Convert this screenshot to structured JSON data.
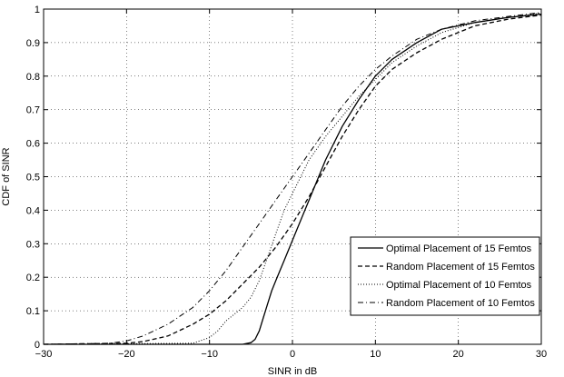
{
  "chart_data": {
    "type": "line",
    "title": "",
    "xlabel": "SINR in dB",
    "ylabel": "CDF of SINR",
    "xlim": [
      -30,
      30
    ],
    "ylim": [
      0,
      1
    ],
    "xticks": [
      -30,
      -20,
      -10,
      0,
      10,
      20,
      30
    ],
    "yticks": [
      0,
      0.1,
      0.2,
      0.3,
      0.4,
      0.5,
      0.6,
      0.7,
      0.8,
      0.9,
      1
    ],
    "xtick_labels": [
      "−30",
      "−20",
      "−10",
      "0",
      "10",
      "20",
      "30"
    ],
    "ytick_labels": [
      "0",
      "0.1",
      "0.2",
      "0.3",
      "0.4",
      "0.5",
      "0.6",
      "0.7",
      "0.8",
      "0.9",
      "1"
    ],
    "grid": true,
    "legend_position": "lower-right",
    "series": [
      {
        "name": "Optimal Placement of 15 Femtos",
        "style": "solid",
        "color": "#000000",
        "x": [
          -30,
          -6,
          -5,
          -4.5,
          -4,
          -3.5,
          -3,
          -2.5,
          -2,
          -1.5,
          -1,
          0,
          1,
          2,
          4,
          6,
          8,
          10,
          12,
          15,
          18,
          22,
          26,
          30
        ],
        "y": [
          0,
          0,
          0.005,
          0.015,
          0.04,
          0.08,
          0.12,
          0.16,
          0.19,
          0.22,
          0.25,
          0.31,
          0.37,
          0.43,
          0.55,
          0.65,
          0.73,
          0.8,
          0.85,
          0.9,
          0.94,
          0.96,
          0.975,
          0.985
        ]
      },
      {
        "name": "Random Placement of 15 Femtos",
        "style": "dashed",
        "color": "#000000",
        "x": [
          -30,
          -20,
          -18,
          -15,
          -12,
          -10,
          -8,
          -6,
          -4,
          -2,
          0,
          2,
          4,
          6,
          8,
          10,
          12,
          15,
          18,
          22,
          26,
          30
        ],
        "y": [
          0,
          0.003,
          0.008,
          0.025,
          0.06,
          0.09,
          0.13,
          0.18,
          0.23,
          0.29,
          0.36,
          0.44,
          0.53,
          0.62,
          0.7,
          0.77,
          0.82,
          0.87,
          0.91,
          0.95,
          0.97,
          0.982
        ]
      },
      {
        "name": "Optimal Placement of 10 Femtos",
        "style": "dotted",
        "color": "#000000",
        "x": [
          -30,
          -12,
          -10,
          -9,
          -8,
          -7,
          -6,
          -5,
          -4,
          -3,
          -2,
          -1,
          0,
          2,
          4,
          6,
          8,
          10,
          12,
          15,
          18,
          22,
          26,
          30
        ],
        "y": [
          0,
          0.003,
          0.02,
          0.04,
          0.07,
          0.09,
          0.11,
          0.14,
          0.19,
          0.26,
          0.33,
          0.4,
          0.45,
          0.55,
          0.62,
          0.68,
          0.74,
          0.79,
          0.84,
          0.89,
          0.93,
          0.96,
          0.975,
          0.988
        ]
      },
      {
        "name": "Random Placement of 10 Femtos",
        "style": "dashdot",
        "color": "#000000",
        "x": [
          -30,
          -22,
          -20,
          -18,
          -15,
          -12,
          -10,
          -8,
          -6,
          -4,
          -2,
          0,
          2,
          4,
          6,
          8,
          10,
          12,
          15,
          18,
          22,
          26,
          30
        ],
        "y": [
          0,
          0.003,
          0.01,
          0.025,
          0.06,
          0.11,
          0.16,
          0.22,
          0.29,
          0.36,
          0.43,
          0.5,
          0.57,
          0.64,
          0.71,
          0.77,
          0.82,
          0.86,
          0.91,
          0.94,
          0.965,
          0.978,
          0.99
        ]
      }
    ]
  }
}
